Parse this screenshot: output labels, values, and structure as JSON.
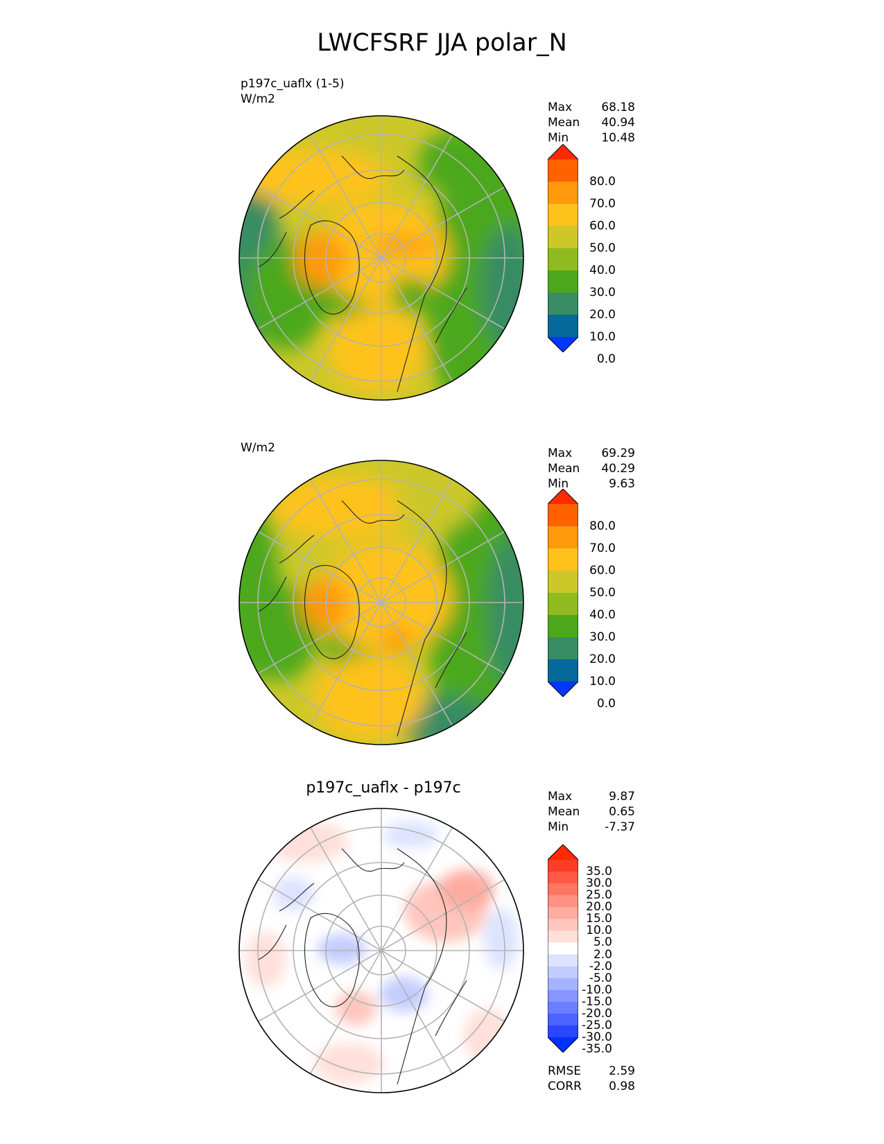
{
  "figure": {
    "title": "LWCFSRF JJA polar_N"
  },
  "chart_data": [
    {
      "type": "heatmap",
      "projection": "north polar stereographic",
      "title": "",
      "case_name": "p197c_uaflx (1-5)",
      "units": "W/m2",
      "stats": {
        "max_label": "Max",
        "max": "68.18",
        "mean_label": "Mean",
        "mean": "40.94",
        "min_label": "Min",
        "min": "10.48"
      },
      "colorbar": {
        "ticks": [
          "80.0",
          "70.0",
          "60.0",
          "50.0",
          "40.0",
          "30.0",
          "20.0",
          "10.0",
          "0.0"
        ],
        "colors": [
          "#ff2a00",
          "#ff6200",
          "#ff9a0c",
          "#ffc21c",
          "#ccc82a",
          "#8fbb20",
          "#4ca81a",
          "#388c63",
          "#05699b",
          "#0037ff"
        ]
      },
      "regions": [
        "central Arctic ~50-60",
        "Greenland ~60-70",
        "N. Pacific ~20-30",
        "Atlantic / Eurasia ~30-50"
      ]
    },
    {
      "type": "heatmap",
      "projection": "north polar stereographic",
      "title": "",
      "case_name": "",
      "units": "W/m2",
      "stats": {
        "max_label": "Max",
        "max": "69.29",
        "mean_label": "Mean",
        "mean": "40.29",
        "min_label": "Min",
        "min": "9.63"
      },
      "colorbar": {
        "ticks": [
          "80.0",
          "70.0",
          "60.0",
          "50.0",
          "40.0",
          "30.0",
          "20.0",
          "10.0",
          "0.0"
        ],
        "colors": [
          "#ff2a00",
          "#ff6200",
          "#ff9a0c",
          "#ffc21c",
          "#ccc82a",
          "#8fbb20",
          "#4ca81a",
          "#388c63",
          "#05699b",
          "#0037ff"
        ]
      },
      "regions": [
        "central Arctic ~50-60",
        "Greenland ~60-70",
        "N. Pacific ~20-30",
        "Atlantic / Eurasia ~30-50"
      ]
    },
    {
      "type": "heatmap",
      "projection": "north polar stereographic",
      "title": "p197c_uaflx - p197c",
      "case_name": "",
      "units": "",
      "stats": {
        "max_label": "Max",
        "max": "9.87",
        "mean_label": "Mean",
        "mean": "0.65",
        "min_label": "Min",
        "min": "-7.37"
      },
      "colorbar": {
        "ticks": [
          "35.0",
          "30.0",
          "25.0",
          "20.0",
          "15.0",
          "10.0",
          "5.0",
          "2.0",
          "-2.0",
          "-5.0",
          "-10.0",
          "-15.0",
          "-20.0",
          "-25.0",
          "-30.0",
          "-35.0"
        ],
        "colors": [
          "#ff2a00",
          "#ff3c28",
          "#ff5a45",
          "#ff7662",
          "#ff9283",
          "#ffaca0",
          "#ffc6bd",
          "#ffe0da",
          "#ffffff",
          "#dde3ff",
          "#c2ccff",
          "#a5b3ff",
          "#8797ff",
          "#6b7eff",
          "#4d63ff",
          "#2b46ff",
          "#0032ff"
        ]
      },
      "regions": [
        "mostly near zero",
        "positive ~2-10 over Eurasia and N. Pacific",
        "negative ~-2 to -10 over Arctic Canada and Greenland Sea"
      ]
    }
  ],
  "metrics": {
    "rmse_label": "RMSE",
    "rmse": "2.59",
    "corr_label": "CORR",
    "corr": "0.98"
  }
}
